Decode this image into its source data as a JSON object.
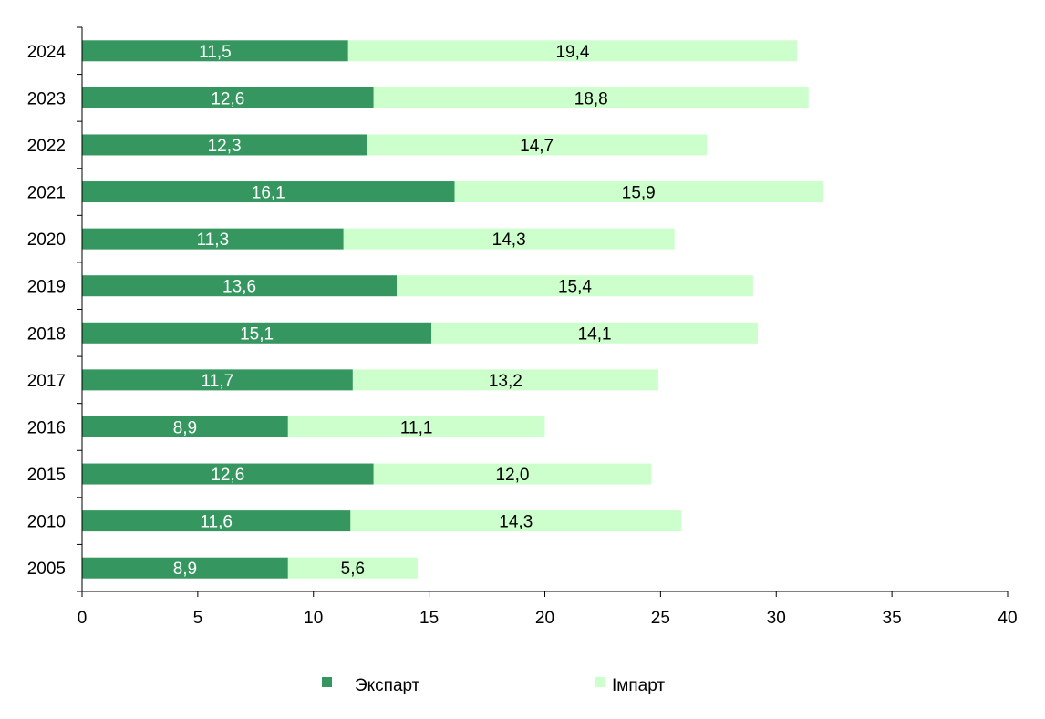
{
  "colors": {
    "export": "#35975f",
    "import": "#ccffcc",
    "axis": "#000000",
    "export_label": "#ffffff",
    "import_label": "#000000"
  },
  "chart_data": {
    "type": "bar",
    "orientation": "horizontal",
    "stacked": true,
    "title": "",
    "xlabel": "",
    "ylabel": "",
    "categories": [
      "2024",
      "2023",
      "2022",
      "2021",
      "2020",
      "2019",
      "2018",
      "2017",
      "2016",
      "2015",
      "2010",
      "2005"
    ],
    "series": [
      {
        "name": "Экспарт",
        "color": "#35975f",
        "values": [
          11.5,
          12.6,
          12.3,
          16.1,
          11.3,
          13.6,
          15.1,
          11.7,
          8.9,
          12.6,
          11.6,
          8.9
        ],
        "labels": [
          "11,5",
          "12,6",
          "12,3",
          "16,1",
          "11,3",
          "13,6",
          "15,1",
          "11,7",
          "8,9",
          "12,6",
          "11,6",
          "8,9"
        ]
      },
      {
        "name": "Імпарт",
        "color": "#ccffcc",
        "values": [
          19.4,
          18.8,
          14.7,
          15.9,
          14.3,
          15.4,
          14.1,
          13.2,
          11.1,
          12.0,
          14.3,
          5.6
        ],
        "labels": [
          "19,4",
          "18,8",
          "14,7",
          "15,9",
          "14,3",
          "15,4",
          "14,1",
          "13,2",
          "11,1",
          "12,0",
          "14,3",
          "5,6"
        ]
      }
    ],
    "xlim": [
      0,
      40
    ],
    "xticks": [
      "0",
      "5",
      "10",
      "15",
      "20",
      "25",
      "30",
      "35",
      "40"
    ],
    "grid": false,
    "legend_position": "bottom"
  }
}
